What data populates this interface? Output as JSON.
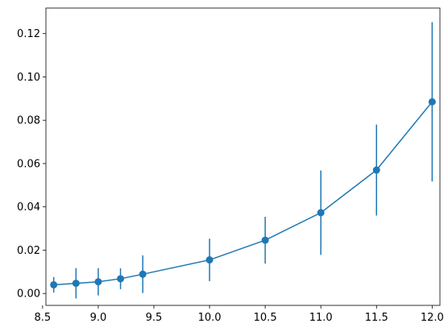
{
  "chart_data": {
    "type": "line",
    "title": "",
    "xlabel": "",
    "ylabel": "",
    "xlim": [
      8.53,
      12.07
    ],
    "ylim": [
      -0.0055,
      0.1318
    ],
    "grid": false,
    "x_ticks": [
      {
        "value": 8.5,
        "label": "8.5"
      },
      {
        "value": 9.0,
        "label": "9.0"
      },
      {
        "value": 9.5,
        "label": "9.5"
      },
      {
        "value": 10.0,
        "label": "10.0"
      },
      {
        "value": 10.5,
        "label": "10.5"
      },
      {
        "value": 11.0,
        "label": "11.0"
      },
      {
        "value": 11.5,
        "label": "11.5"
      },
      {
        "value": 12.0,
        "label": "12.0"
      }
    ],
    "y_ticks": [
      {
        "value": 0.0,
        "label": "0.00"
      },
      {
        "value": 0.02,
        "label": "0.02"
      },
      {
        "value": 0.04,
        "label": "0.04"
      },
      {
        "value": 0.06,
        "label": "0.06"
      },
      {
        "value": 0.08,
        "label": "0.08"
      },
      {
        "value": 0.1,
        "label": "0.10"
      },
      {
        "value": 0.12,
        "label": "0.12"
      }
    ],
    "series": [
      {
        "color": "#1f77b4",
        "marker": "circle",
        "x": [
          8.6,
          8.8,
          9.0,
          9.2,
          9.4,
          10.0,
          10.5,
          11.0,
          11.5,
          12.0
        ],
        "y": [
          0.004,
          0.0047,
          0.0054,
          0.0068,
          0.0089,
          0.0155,
          0.0246,
          0.0373,
          0.057,
          0.0885
        ],
        "yerr": [
          0.0036,
          0.007,
          0.0063,
          0.0048,
          0.0087,
          0.0098,
          0.0108,
          0.0195,
          0.021,
          0.0368
        ]
      }
    ]
  }
}
